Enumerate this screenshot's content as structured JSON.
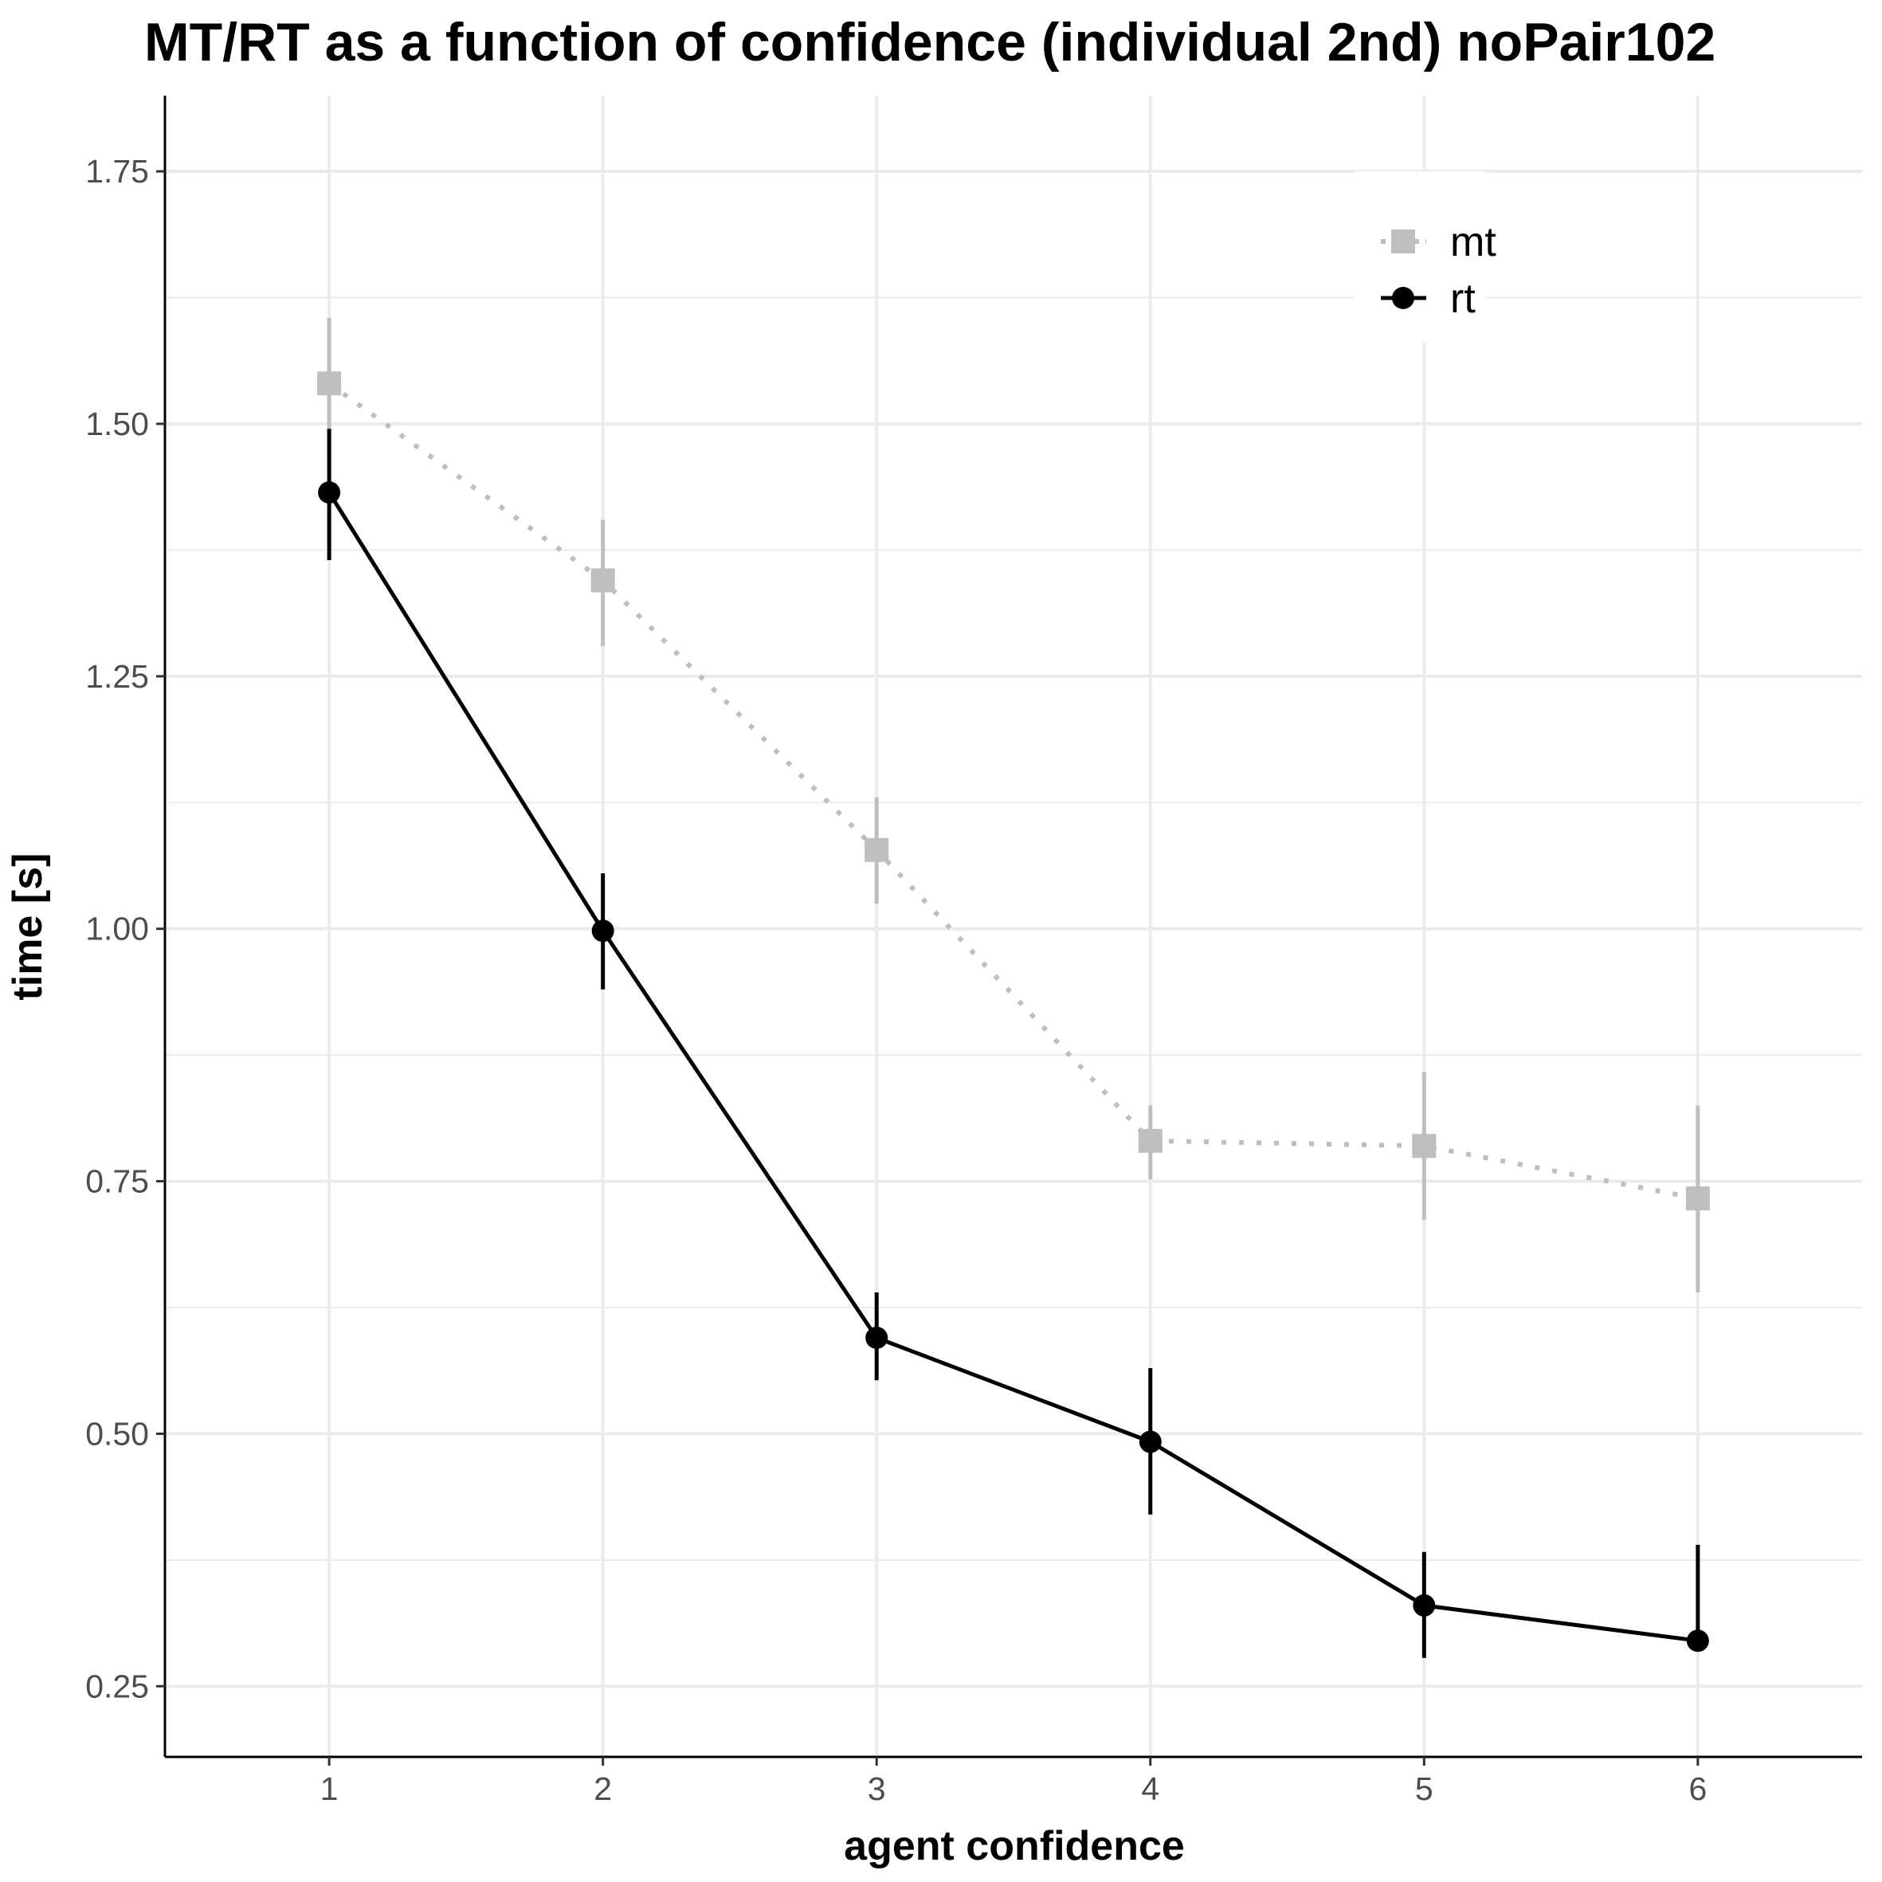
{
  "chart_data": {
    "type": "line",
    "title": "MT/RT as a function of confidence (individual 2nd) noPair102",
    "xlabel": "agent confidence",
    "ylabel": "time [s]",
    "x": [
      1,
      2,
      3,
      4,
      5,
      6
    ],
    "x_ticks": [
      "1",
      "2",
      "3",
      "4",
      "5",
      "6"
    ],
    "xlim": [
      0.4,
      6.6
    ],
    "y_ticks": [
      "0.25",
      "0.50",
      "0.75",
      "1.00",
      "1.25",
      "1.50",
      "1.75"
    ],
    "ylim": [
      0.18,
      1.825
    ],
    "grid": true,
    "legend_position": "top-right",
    "series": [
      {
        "name": "mt",
        "color": "#bebebe",
        "line_style": "dotted",
        "marker": "square",
        "values": [
          1.54,
          1.345,
          1.078,
          0.79,
          0.785,
          0.733
        ],
        "error_low": [
          1.475,
          1.28,
          1.025,
          0.752,
          0.712,
          0.64
        ],
        "error_high": [
          1.605,
          1.405,
          1.13,
          0.825,
          0.858,
          0.825
        ]
      },
      {
        "name": "rt",
        "color": "#000000",
        "line_style": "solid",
        "marker": "circle",
        "values": [
          1.432,
          0.998,
          0.595,
          0.492,
          0.33,
          0.295
        ],
        "error_low": [
          1.365,
          0.94,
          0.553,
          0.42,
          0.278,
          0.295
        ],
        "error_high": [
          1.495,
          1.055,
          0.64,
          0.565,
          0.383,
          0.39
        ]
      }
    ]
  }
}
